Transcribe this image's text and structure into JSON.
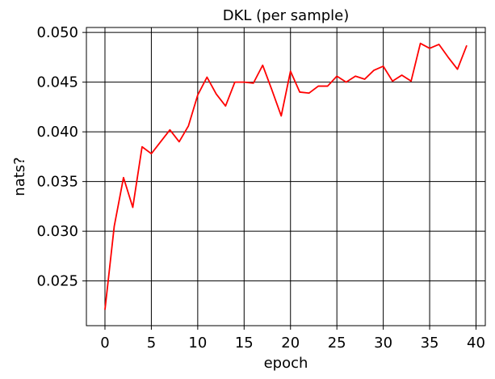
{
  "chart_data": {
    "type": "line",
    "title": "DKL (per sample)",
    "xlabel": "epoch",
    "ylabel": "nats?",
    "xlim": [
      -2,
      41
    ],
    "ylim": [
      0.0205,
      0.0505
    ],
    "xticks": [
      0,
      5,
      10,
      15,
      20,
      25,
      30,
      35,
      40
    ],
    "yticks": [
      0.025,
      0.03,
      0.035,
      0.04,
      0.045,
      0.05
    ],
    "xtick_labels": [
      "0",
      "5",
      "10",
      "15",
      "20",
      "25",
      "30",
      "35",
      "40"
    ],
    "ytick_labels": [
      "0.025",
      "0.030",
      "0.035",
      "0.040",
      "0.045",
      "0.050"
    ],
    "grid": true,
    "series": [
      {
        "color": "#ff0000",
        "x": [
          0,
          1,
          2,
          3,
          4,
          5,
          6,
          7,
          8,
          9,
          10,
          11,
          12,
          13,
          14,
          15,
          16,
          17,
          18,
          19,
          20,
          21,
          22,
          23,
          24,
          25,
          26,
          27,
          28,
          29,
          30,
          31,
          32,
          33,
          34,
          35,
          36,
          37,
          38,
          39
        ],
        "y": [
          0.0221,
          0.0305,
          0.0354,
          0.0324,
          0.0385,
          0.0378,
          0.039,
          0.0402,
          0.039,
          0.0406,
          0.0437,
          0.0455,
          0.0438,
          0.0426,
          0.045,
          0.045,
          0.0449,
          0.0467,
          0.0442,
          0.0416,
          0.0461,
          0.044,
          0.0439,
          0.0446,
          0.0446,
          0.0456,
          0.045,
          0.0456,
          0.0453,
          0.0462,
          0.0466,
          0.0451,
          0.0457,
          0.0451,
          0.0489,
          0.0484,
          0.0488,
          0.0475,
          0.0463,
          0.0487
        ]
      }
    ]
  }
}
